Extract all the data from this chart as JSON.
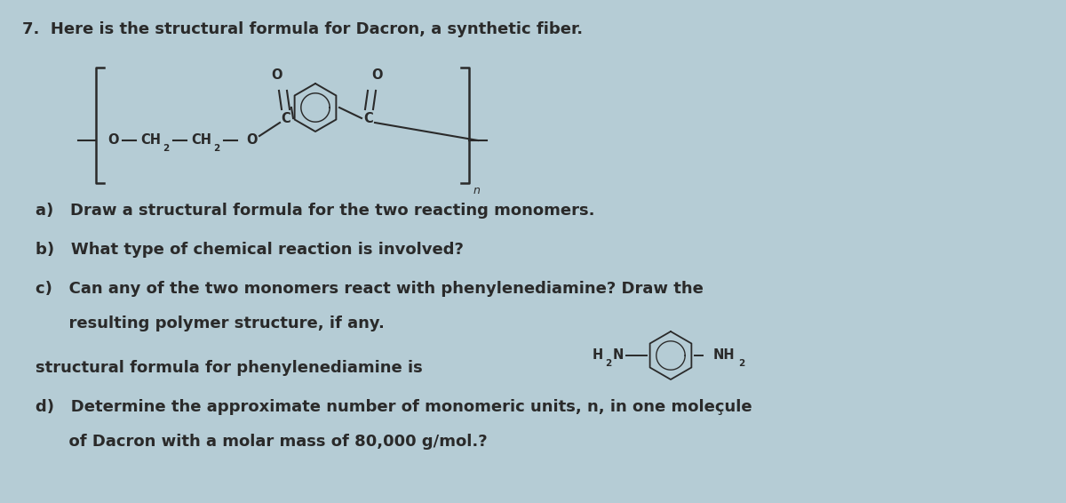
{
  "background_color": "#b5ccd5",
  "text_color": "#2a2a2a",
  "title_line": "7.  Here is the structural formula for Dacron, a synthetic fiber.",
  "question_a": "a)   Draw a structural formula for the two reacting monomers.",
  "question_b": "b)   What type of chemical reaction is involved?",
  "question_c_line1": "c)   Can any of the two monomers react with phenylenediamine? Draw the",
  "question_c_line2": "      resulting polymer structure, if any.",
  "question_d_line1": "d)   Determine the approximate number of monomeric units, n, in one moleçule",
  "question_d_line2": "      of Dacron with a molar mass of 80,000 g/mol.?",
  "phenylenediamine_label": "structural formula for phenylenediamine is",
  "font_size_main": 13.0,
  "font_size_chem": 10.5,
  "font_size_sub": 7.5
}
